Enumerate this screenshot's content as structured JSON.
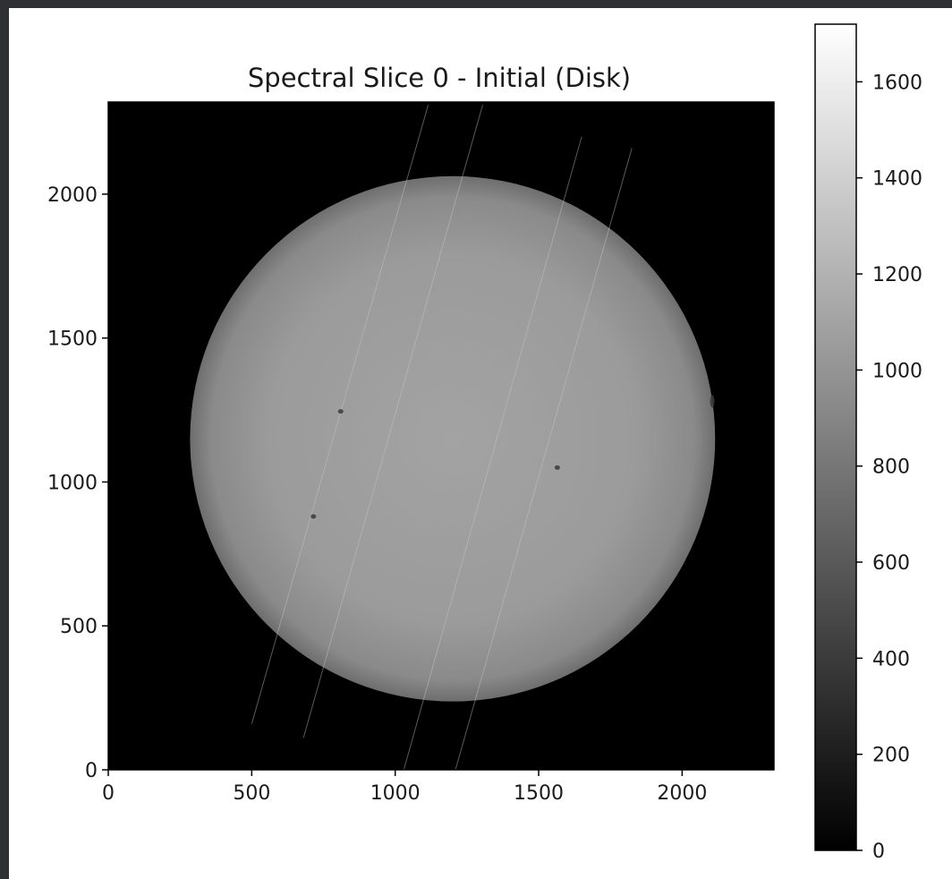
{
  "chart_data": {
    "type": "heatmap",
    "title": "Spectral Slice 0 - Initial (Disk)",
    "xlabel": "",
    "ylabel": "",
    "xlim": [
      0,
      2320
    ],
    "ylim": [
      0,
      2320
    ],
    "x_ticks": [
      0,
      500,
      1000,
      1500,
      2000
    ],
    "y_ticks": [
      0,
      500,
      1000,
      1500,
      2000
    ],
    "colormap": "gray",
    "colorbar": {
      "range": [
        0,
        1720
      ],
      "ticks": [
        0,
        200,
        400,
        600,
        800,
        1000,
        1200,
        1400,
        1600
      ]
    },
    "disk": {
      "center_x": 1200,
      "center_y": 1150,
      "radius": 915,
      "center_value": 1180,
      "limb_value": 880,
      "background_value": 0
    },
    "sunspots": [
      {
        "x": 1565,
        "y": 1050
      },
      {
        "x": 2105,
        "y": 1280
      },
      {
        "x": 715,
        "y": 880
      },
      {
        "x": 810,
        "y": 1245
      }
    ],
    "streaks": [
      {
        "x1": 500,
        "y1": 160,
        "x2": 1115,
        "y2": 2310
      },
      {
        "x1": 680,
        "y1": 110,
        "x2": 1305,
        "y2": 2310
      },
      {
        "x1": 1030,
        "y1": 0,
        "x2": 1650,
        "y2": 2200
      },
      {
        "x1": 1210,
        "y1": 0,
        "x2": 1825,
        "y2": 2160
      }
    ]
  },
  "colors": {
    "background": "#2f3033",
    "figure": "#ffffff",
    "axes_face": "#000000",
    "text": "#1a1a1a"
  }
}
